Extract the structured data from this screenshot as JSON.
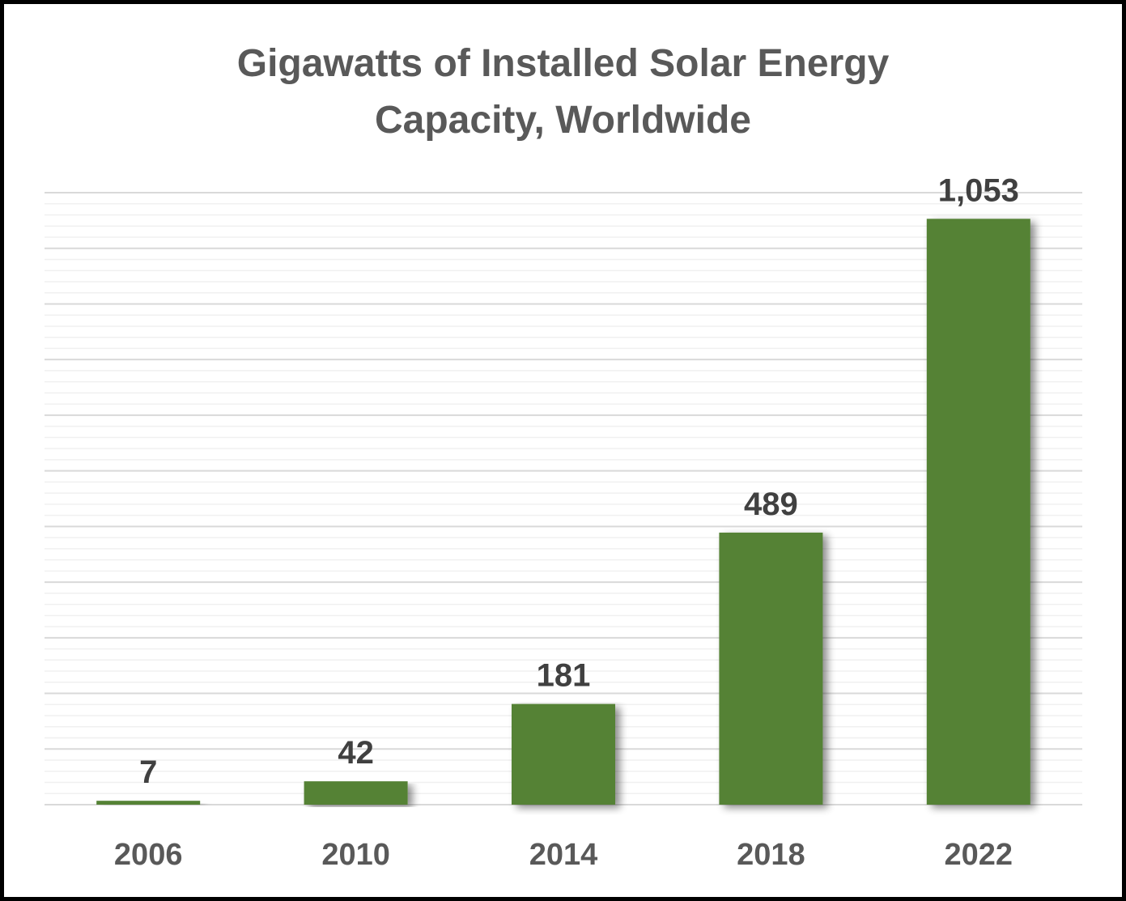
{
  "chart_data": {
    "type": "bar",
    "title": "Gigawatts of Installed Solar Energy Capacity, Worldwide",
    "title_lines": [
      "Gigawatts of Installed Solar Energy",
      "Capacity, Worldwide"
    ],
    "categories": [
      "2006",
      "2010",
      "2014",
      "2018",
      "2022"
    ],
    "values": [
      7,
      42,
      181,
      489,
      1053
    ],
    "data_labels": [
      "7",
      "42",
      "181",
      "489",
      "1,053"
    ],
    "xlabel": "",
    "ylabel": "",
    "ylim": [
      0,
      1100
    ],
    "grid": true,
    "legend": "none",
    "colors": {
      "bar": "#548235",
      "grid_major": "#d9d9d9",
      "grid_minor": "#f0f0f0",
      "text": "#595959",
      "frame": "#000000"
    }
  }
}
